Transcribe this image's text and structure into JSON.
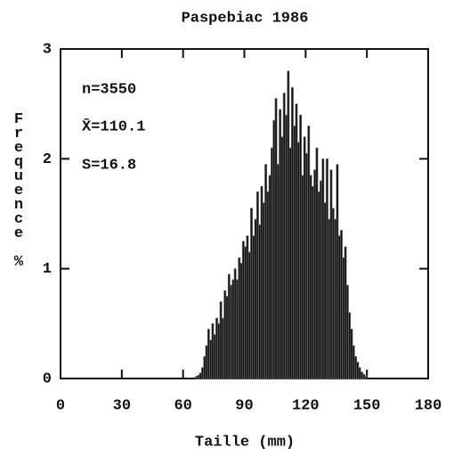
{
  "chart_data": {
    "type": "histogram",
    "title": "Paspebiac 1986",
    "xlabel": "Taille (mm)",
    "ylabel": "Frequence %",
    "annotations": [
      "n=3550",
      "X̄=110.1",
      "S=16.8"
    ],
    "bins": [
      66,
      67,
      68,
      69,
      70,
      71,
      72,
      73,
      74,
      75,
      76,
      77,
      78,
      79,
      80,
      81,
      82,
      83,
      84,
      85,
      86,
      87,
      88,
      89,
      90,
      91,
      92,
      93,
      94,
      95,
      96,
      97,
      98,
      99,
      100,
      101,
      102,
      103,
      104,
      105,
      106,
      107,
      108,
      109,
      110,
      111,
      112,
      113,
      114,
      115,
      116,
      117,
      118,
      119,
      120,
      121,
      122,
      123,
      124,
      125,
      126,
      127,
      128,
      129,
      130,
      131,
      132,
      133,
      134,
      135,
      136,
      137,
      138,
      139,
      140,
      141,
      142,
      143,
      144,
      145,
      146,
      147,
      148,
      149,
      150
    ],
    "values": [
      0.02,
      0.03,
      0.05,
      0.1,
      0.2,
      0.3,
      0.45,
      0.35,
      0.5,
      0.4,
      0.55,
      0.5,
      0.7,
      0.55,
      0.8,
      0.75,
      0.95,
      0.85,
      0.9,
      1.0,
      0.9,
      1.1,
      1.05,
      1.25,
      1.2,
      1.3,
      1.15,
      1.55,
      1.3,
      1.45,
      1.7,
      1.4,
      1.75,
      1.6,
      1.95,
      1.7,
      1.85,
      2.1,
      2.35,
      2.55,
      1.95,
      2.45,
      2.2,
      2.6,
      2.4,
      2.8,
      2.1,
      2.65,
      2.3,
      2.5,
      2.15,
      2.4,
      1.85,
      2.2,
      2.05,
      2.3,
      1.85,
      1.75,
      1.9,
      2.1,
      1.7,
      1.8,
      2.0,
      1.6,
      2.0,
      1.45,
      1.9,
      1.55,
      1.45,
      1.95,
      1.3,
      1.35,
      1.1,
      1.2,
      0.85,
      0.6,
      0.45,
      0.3,
      0.2,
      0.15,
      0.1,
      0.06,
      0.04,
      0.02
    ],
    "color": "#111111",
    "xlim": [
      0,
      180
    ],
    "xticks": [
      0,
      30,
      60,
      90,
      120,
      150,
      180
    ],
    "ylim": [
      0,
      3
    ],
    "yticks": [
      0,
      1,
      2,
      3
    ]
  }
}
